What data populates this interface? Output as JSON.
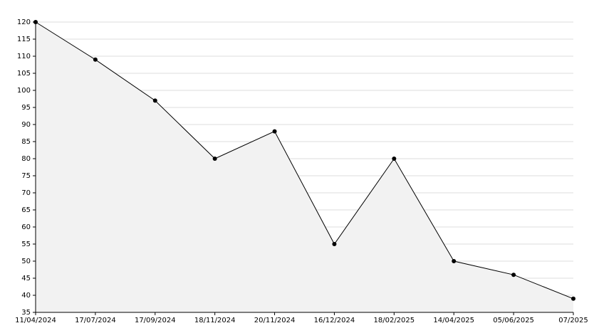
{
  "chart_data": {
    "type": "area",
    "categories": [
      "11/04/2024",
      "17/07/2024",
      "17/09/2024",
      "18/11/2024",
      "20/11/2024",
      "16/12/2024",
      "18/02/2025",
      "14/04/2025",
      "05/06/2025",
      "07/2025"
    ],
    "values": [
      120,
      109,
      97,
      80,
      88,
      55,
      80,
      50,
      46,
      39
    ],
    "color": "#000000",
    "fill": "#f2f2f2",
    "ylim": [
      35,
      120
    ],
    "yticks": [
      35,
      40,
      45,
      50,
      55,
      60,
      65,
      70,
      75,
      80,
      85,
      90,
      95,
      100,
      105,
      110,
      115,
      120
    ],
    "grid": true
  }
}
